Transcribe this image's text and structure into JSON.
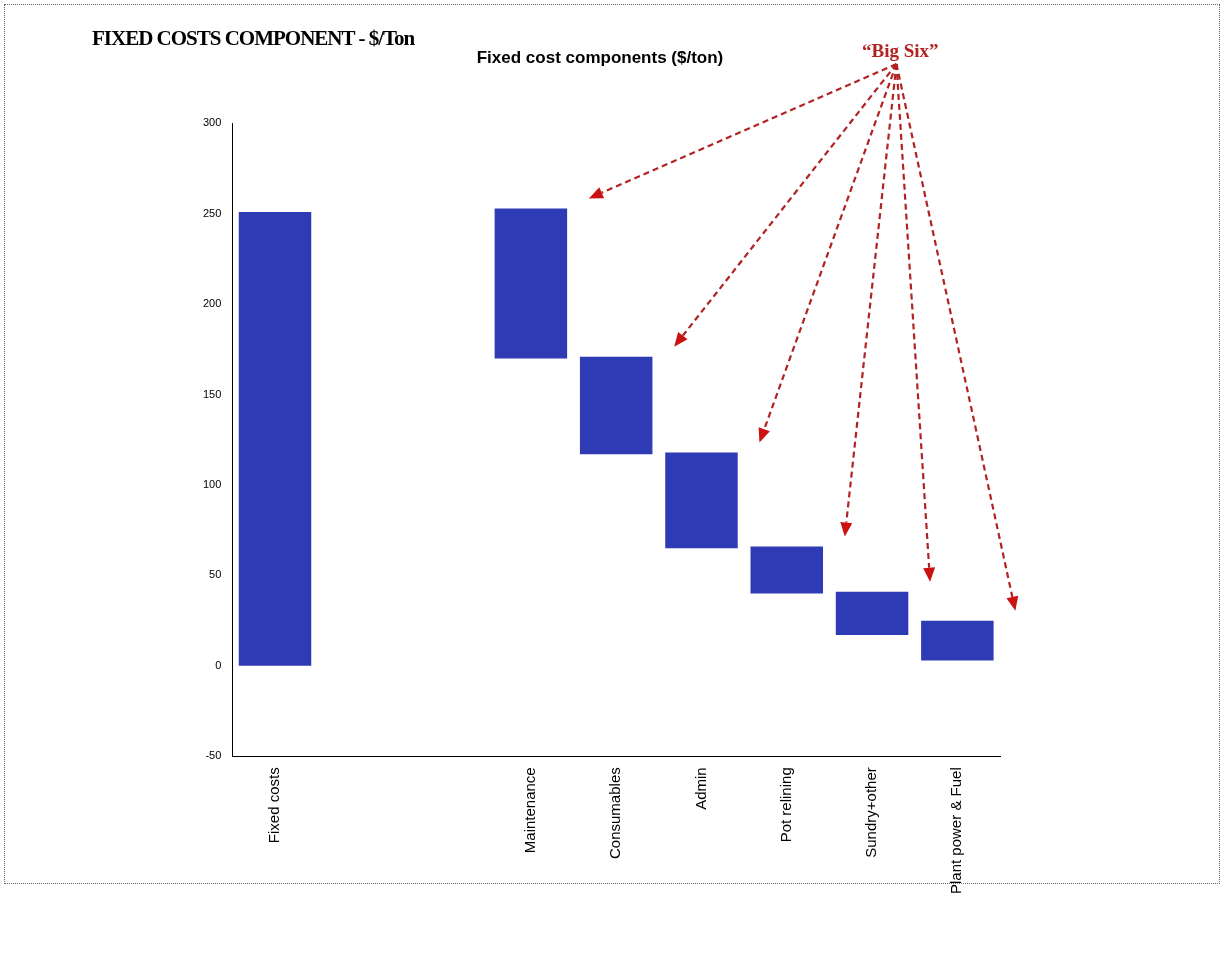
{
  "chart_data": {
    "type": "bar",
    "title": "FIXED COSTS COMPONENT - $/Ton",
    "subtitle": "Fixed cost components ($/ton)",
    "categories": [
      "Fixed costs",
      null,
      null,
      "Maintenance",
      "Consumables",
      "Admin",
      "Pot relining",
      "Sundry+other",
      "Plant power & Fuel"
    ],
    "values": [
      251,
      null,
      null,
      83,
      54,
      53,
      26,
      24,
      22
    ],
    "base": [
      0,
      null,
      null,
      170,
      117,
      65,
      40,
      17,
      3
    ],
    "color": "#2e3bb5",
    "ylim": [
      -50,
      300
    ],
    "yticks": [
      -50,
      0,
      50,
      100,
      150,
      200,
      250,
      300
    ],
    "annotations": [
      "“Big Six”"
    ],
    "grid": false,
    "legend": false
  }
}
